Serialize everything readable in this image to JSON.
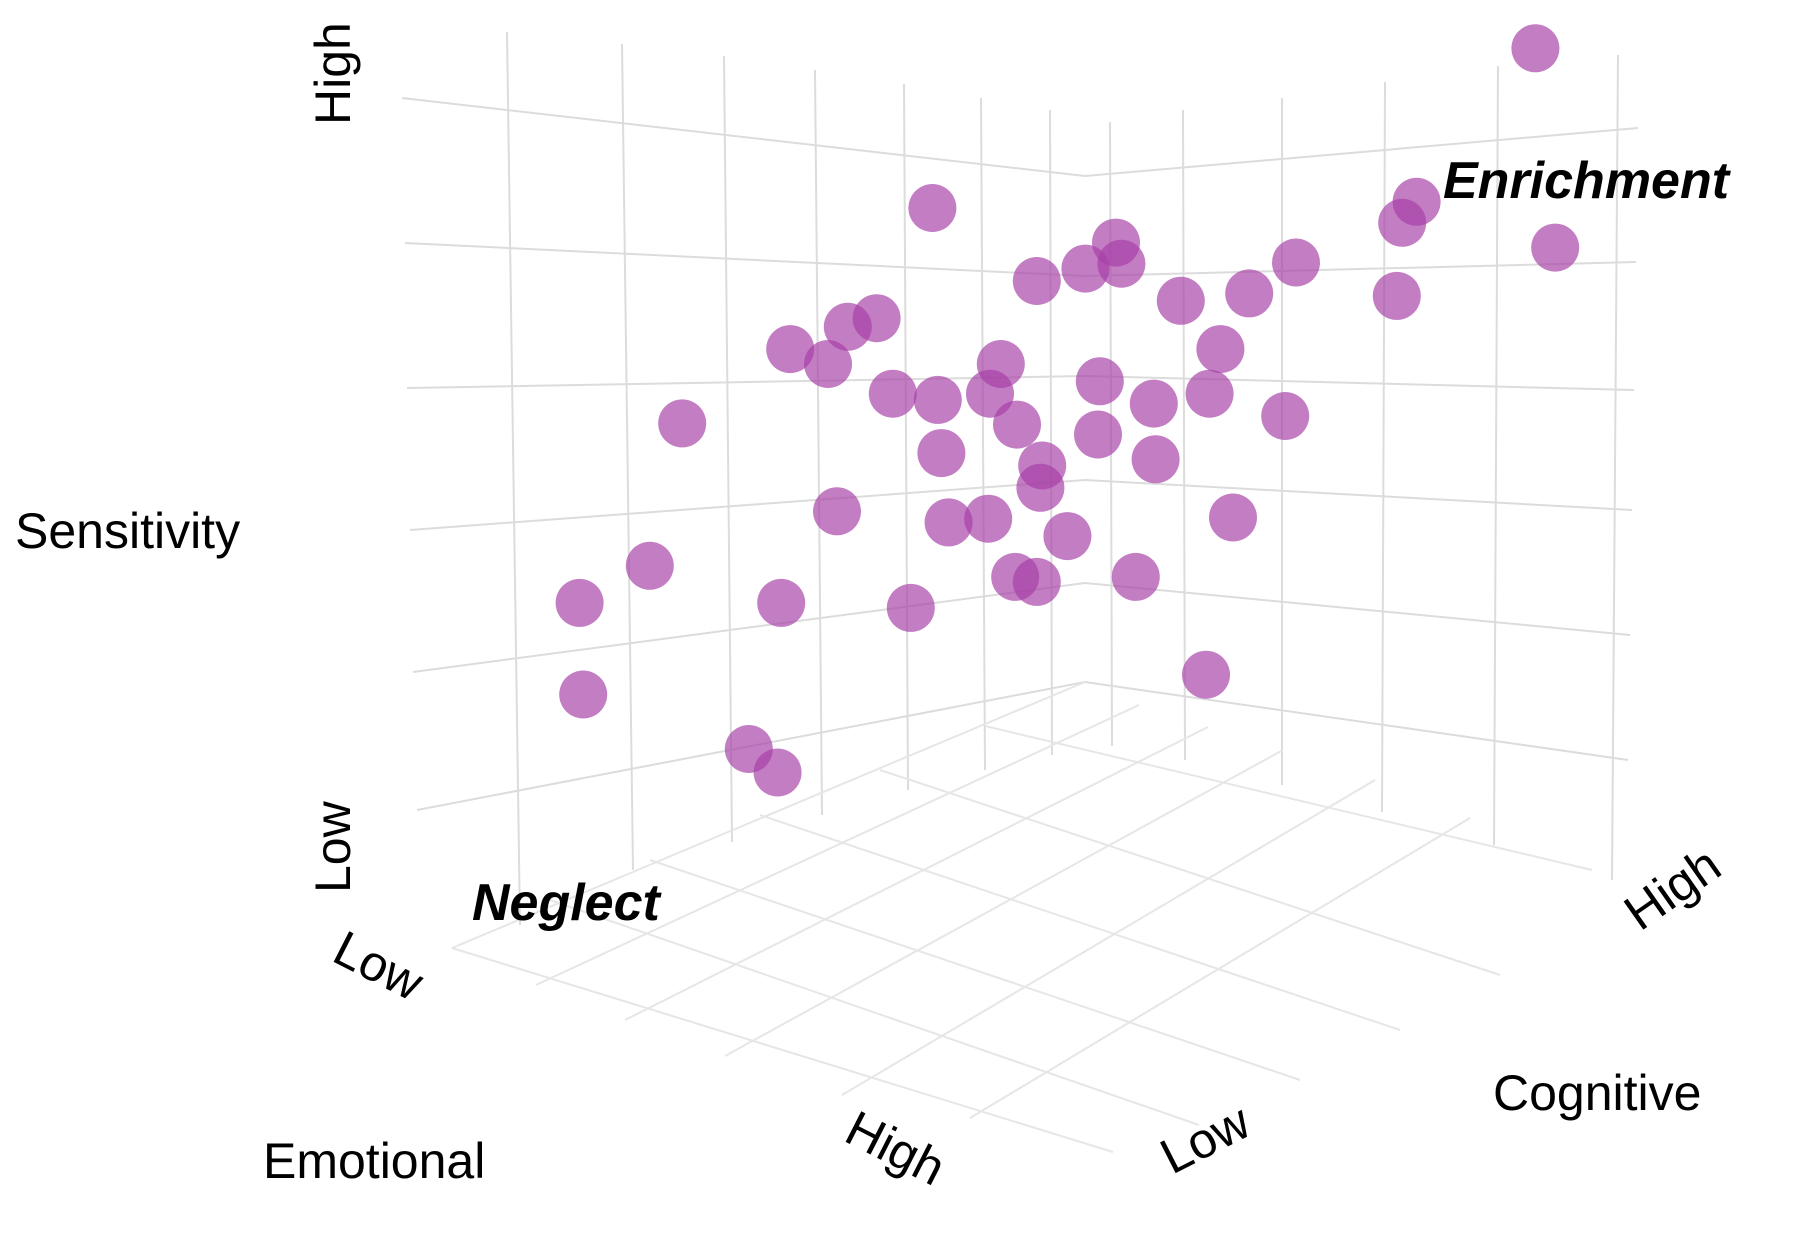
{
  "chart_data": {
    "type": "scatter",
    "dimensions": 3,
    "axes": {
      "z": {
        "label": "Sensitivity",
        "low": "Low",
        "high": "High"
      },
      "x": {
        "label": "Emotional",
        "low": "Low",
        "high": "High"
      },
      "y": {
        "label": "Cognitive",
        "low": "Low",
        "high": "High"
      }
    },
    "annotations": {
      "low_corner": "Neglect",
      "high_corner": "Enrichment"
    },
    "point_color": "#a640a6",
    "point_opacity": 0.68,
    "grid": true,
    "points_screen_normalized": [
      [
        0.853,
        0.039
      ],
      [
        0.787,
        0.163
      ],
      [
        0.779,
        0.18
      ],
      [
        0.864,
        0.2
      ],
      [
        0.776,
        0.239
      ],
      [
        0.72,
        0.212
      ],
      [
        0.656,
        0.243
      ],
      [
        0.694,
        0.237
      ],
      [
        0.518,
        0.168
      ],
      [
        0.62,
        0.196
      ],
      [
        0.623,
        0.213
      ],
      [
        0.603,
        0.217
      ],
      [
        0.576,
        0.227
      ],
      [
        0.487,
        0.257
      ],
      [
        0.471,
        0.264
      ],
      [
        0.439,
        0.282
      ],
      [
        0.46,
        0.294
      ],
      [
        0.556,
        0.294
      ],
      [
        0.678,
        0.282
      ],
      [
        0.611,
        0.308
      ],
      [
        0.496,
        0.318
      ],
      [
        0.521,
        0.323
      ],
      [
        0.55,
        0.318
      ],
      [
        0.641,
        0.326
      ],
      [
        0.672,
        0.318
      ],
      [
        0.714,
        0.336
      ],
      [
        0.379,
        0.342
      ],
      [
        0.565,
        0.343
      ],
      [
        0.61,
        0.351
      ],
      [
        0.523,
        0.366
      ],
      [
        0.642,
        0.371
      ],
      [
        0.579,
        0.376
      ],
      [
        0.578,
        0.394
      ],
      [
        0.465,
        0.413
      ],
      [
        0.527,
        0.422
      ],
      [
        0.549,
        0.419
      ],
      [
        0.593,
        0.433
      ],
      [
        0.685,
        0.418
      ],
      [
        0.361,
        0.457
      ],
      [
        0.322,
        0.487
      ],
      [
        0.434,
        0.487
      ],
      [
        0.506,
        0.491
      ],
      [
        0.564,
        0.466
      ],
      [
        0.576,
        0.47
      ],
      [
        0.631,
        0.466
      ],
      [
        0.67,
        0.545
      ],
      [
        0.324,
        0.561
      ],
      [
        0.416,
        0.605
      ],
      [
        0.432,
        0.624
      ]
    ]
  }
}
